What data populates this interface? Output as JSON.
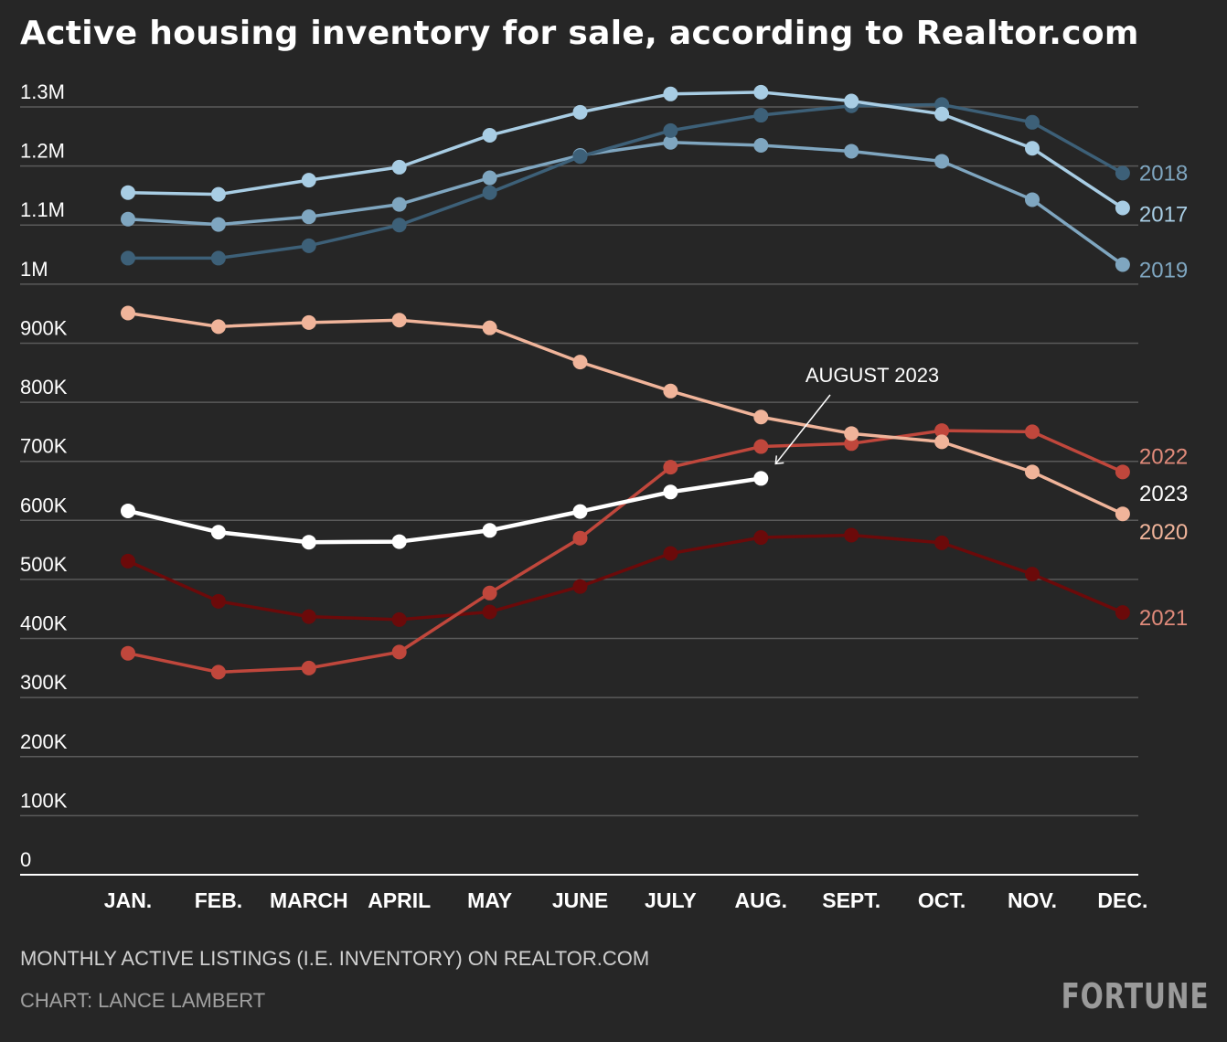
{
  "title": "Active housing inventory for sale, according to Realtor.com",
  "footnote": "MONTHLY ACTIVE LISTINGS (I.E. INVENTORY) ON REALTOR.COM",
  "credit": "CHART: LANCE LAMBERT",
  "brand": "FORTUNE",
  "chart_data": {
    "type": "line",
    "categories": [
      "JAN.",
      "FEB.",
      "MARCH",
      "APRIL",
      "MAY",
      "JUNE",
      "JULY",
      "AUG.",
      "SEPT.",
      "OCT.",
      "NOV.",
      "DEC."
    ],
    "y_ticks": [
      {
        "value": 0,
        "label": "0"
      },
      {
        "value": 100000,
        "label": "100K"
      },
      {
        "value": 200000,
        "label": "200K"
      },
      {
        "value": 300000,
        "label": "300K"
      },
      {
        "value": 400000,
        "label": "400K"
      },
      {
        "value": 500000,
        "label": "500K"
      },
      {
        "value": 600000,
        "label": "600K"
      },
      {
        "value": 700000,
        "label": "700K"
      },
      {
        "value": 800000,
        "label": "800K"
      },
      {
        "value": 900000,
        "label": "900K"
      },
      {
        "value": 1000000,
        "label": "1M"
      },
      {
        "value": 1100000,
        "label": "1.1M"
      },
      {
        "value": 1200000,
        "label": "1.2M"
      },
      {
        "value": 1300000,
        "label": "1.3M"
      }
    ],
    "ylim": [
      0,
      1300000
    ],
    "grid": true,
    "series": [
      {
        "name": "2021",
        "color": "#6b0a0a",
        "label_color": "#e08a7a",
        "values": [
          531000,
          463000,
          437000,
          432000,
          445000,
          488000,
          544000,
          571000,
          575000,
          562000,
          509000,
          444000
        ]
      },
      {
        "name": "2022",
        "color": "#c0473c",
        "label_color": "#e08a7a",
        "values": [
          375000,
          343000,
          350000,
          377000,
          477000,
          570000,
          690000,
          725000,
          730000,
          752000,
          750000,
          682000
        ]
      },
      {
        "name": "2020",
        "color": "#f0b49a",
        "label_color": "#f0b49a",
        "values": [
          951000,
          928000,
          935000,
          939000,
          926000,
          868000,
          819000,
          775000,
          747000,
          733000,
          682000,
          611000
        ]
      },
      {
        "name": "2019",
        "color": "#7fa6c0",
        "label_color": "#7fa6c0",
        "values": [
          1110000,
          1101000,
          1114000,
          1135000,
          1180000,
          1218000,
          1240000,
          1235000,
          1225000,
          1208000,
          1143000,
          1033000
        ]
      },
      {
        "name": "2018",
        "color": "#3d6078",
        "label_color": "#7fa6c0",
        "values": [
          1044000,
          1044000,
          1065000,
          1100000,
          1155000,
          1216000,
          1260000,
          1286000,
          1302000,
          1304000,
          1274000,
          1188000
        ]
      },
      {
        "name": "2017",
        "color": "#a8cde4",
        "label_color": "#a8cde4",
        "values": [
          1155000,
          1152000,
          1176000,
          1198000,
          1252000,
          1291000,
          1322000,
          1325000,
          1310000,
          1288000,
          1230000,
          1129000
        ]
      },
      {
        "name": "2023",
        "color": "#ffffff",
        "label_color": "#ffffff",
        "values": [
          616000,
          580000,
          563000,
          564000,
          583000,
          615000,
          648000,
          671000,
          null,
          null,
          null,
          null
        ]
      }
    ],
    "annotations": [
      {
        "text": "AUGUST 2023",
        "category": "AUG.",
        "series": "2023"
      }
    ]
  }
}
